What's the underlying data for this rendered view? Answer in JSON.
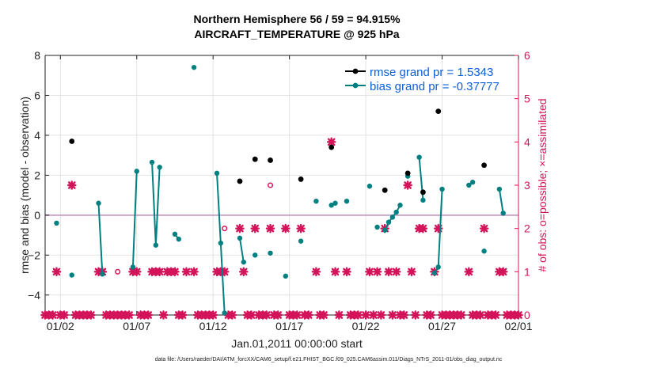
{
  "chart_data": {
    "type": "scatter",
    "title": "Northern Hemisphere 56 / 59 = 94.915%",
    "subtitle": "AIRCRAFT_TEMPERATURE @ 925 hPa",
    "xlabel": "Jan.01,2011 00:00:00 start",
    "ylabel": "rmse and bias (model - observation)",
    "y2label": "# of obs: o=possible; ×=assimilated",
    "footer": "data file: /Users/raeder/DAI/ATM_forcXX/CAM6_setup/f.e21.FHIST_BGC.f09_025.CAM6assim.011/Diags_NTrS_2011-01/obs_diag_output.nc",
    "xlim": [
      1,
      32
    ],
    "ylim": [
      -5,
      8
    ],
    "y2lim": [
      0,
      6
    ],
    "x_ticks": [
      2,
      7,
      12,
      17,
      22,
      27,
      32
    ],
    "x_tick_labels": [
      "01/02",
      "01/07",
      "01/12",
      "01/17",
      "01/22",
      "01/27",
      "02/01"
    ],
    "y_ticks": [
      -4,
      -2,
      0,
      2,
      4,
      6,
      8
    ],
    "y2_ticks": [
      0,
      1,
      2,
      3,
      4,
      5,
      6
    ],
    "grid": true,
    "zero_line": 0,
    "legend": {
      "location": "top-right",
      "entries": [
        "rmse grand pr = 1.5343",
        "bias grand pr = -0.37777"
      ]
    },
    "colors": {
      "rmse": "#000000",
      "bias": "#008080",
      "obs": "#d4145a",
      "legend_text": "#0b5fd9",
      "zero_line": "#c8a8c4"
    },
    "rmse_points": [
      [
        2.75,
        3.7
      ],
      [
        13.75,
        1.7
      ],
      [
        14.75,
        2.8
      ],
      [
        15.75,
        2.75
      ],
      [
        17.75,
        1.8
      ],
      [
        19.75,
        3.4
      ],
      [
        23.25,
        1.25
      ],
      [
        24.75,
        2.1
      ],
      [
        25.75,
        1.15
      ],
      [
        26.75,
        5.2
      ],
      [
        29.75,
        2.5
      ]
    ],
    "bias_segments": [
      [
        [
          1.75,
          -0.4
        ]
      ],
      [
        [
          2.75,
          -3.0
        ]
      ],
      [
        [
          4.5,
          0.6
        ],
        [
          4.75,
          -2.95
        ]
      ],
      [
        [
          6.75,
          -2.6
        ],
        [
          7.0,
          2.2
        ]
      ],
      [
        [
          8.0,
          2.65
        ],
        [
          8.25,
          -1.5
        ],
        [
          8.5,
          2.4
        ]
      ],
      [
        [
          9.5,
          -0.95
        ],
        [
          9.75,
          -1.2
        ]
      ],
      [
        [
          10.75,
          7.4
        ]
      ],
      [
        [
          12.25,
          2.1
        ],
        [
          12.5,
          -1.4
        ],
        [
          12.75,
          -4.9
        ]
      ],
      [
        [
          13.75,
          -1.15
        ],
        [
          14.0,
          -2.35
        ]
      ],
      [
        [
          14.75,
          -2.0
        ]
      ],
      [
        [
          15.75,
          -1.9
        ]
      ],
      [
        [
          16.75,
          -3.05
        ]
      ],
      [
        [
          17.75,
          -1.3
        ]
      ],
      [
        [
          18.75,
          0.7
        ]
      ],
      [
        [
          19.75,
          0.5
        ],
        [
          20.0,
          0.6
        ]
      ],
      [
        [
          20.75,
          0.7
        ]
      ],
      [
        [
          22.25,
          1.45
        ]
      ],
      [
        [
          22.75,
          -0.6
        ]
      ],
      [
        [
          23.25,
          -0.75
        ],
        [
          23.5,
          -0.35
        ],
        [
          23.75,
          -0.1
        ],
        [
          24.0,
          0.15
        ],
        [
          24.25,
          0.5
        ]
      ],
      [
        [
          24.75,
          1.95
        ]
      ],
      [
        [
          25.5,
          2.9
        ],
        [
          25.75,
          0.75
        ]
      ],
      [
        [
          26.5,
          -2.9
        ],
        [
          26.75,
          -2.6
        ],
        [
          27.0,
          1.3
        ]
      ],
      [
        [
          28.75,
          1.5
        ],
        [
          29.0,
          1.65
        ]
      ],
      [
        [
          29.75,
          -1.8
        ]
      ],
      [
        [
          30.75,
          1.3
        ],
        [
          31.0,
          0.1
        ]
      ]
    ],
    "obs_possible_points": [
      [
        5.75,
        1
      ],
      [
        12.75,
        2
      ],
      [
        15.75,
        3
      ]
    ],
    "obs_assimilated_points": [
      [
        1.0,
        0
      ],
      [
        1.25,
        0
      ],
      [
        1.5,
        0
      ],
      [
        1.75,
        1
      ],
      [
        2.0,
        0
      ],
      [
        2.25,
        0
      ],
      [
        2.75,
        3
      ],
      [
        3.0,
        0
      ],
      [
        3.25,
        0
      ],
      [
        3.5,
        0
      ],
      [
        3.75,
        0
      ],
      [
        4.0,
        0
      ],
      [
        4.5,
        1
      ],
      [
        4.75,
        1
      ],
      [
        5.0,
        0
      ],
      [
        5.25,
        0
      ],
      [
        5.5,
        0
      ],
      [
        5.75,
        0
      ],
      [
        6.0,
        0
      ],
      [
        6.25,
        0
      ],
      [
        6.5,
        0
      ],
      [
        6.75,
        1
      ],
      [
        7.0,
        1
      ],
      [
        7.25,
        0
      ],
      [
        7.5,
        0
      ],
      [
        7.75,
        0
      ],
      [
        8.0,
        1
      ],
      [
        8.25,
        1
      ],
      [
        8.5,
        1
      ],
      [
        8.75,
        0
      ],
      [
        9.0,
        1
      ],
      [
        9.25,
        1
      ],
      [
        9.5,
        1
      ],
      [
        9.75,
        0
      ],
      [
        10.0,
        0
      ],
      [
        10.25,
        1
      ],
      [
        10.75,
        1
      ],
      [
        11.0,
        0
      ],
      [
        11.25,
        0
      ],
      [
        11.5,
        0
      ],
      [
        11.75,
        0
      ],
      [
        12.0,
        0
      ],
      [
        12.25,
        1
      ],
      [
        12.5,
        1
      ],
      [
        12.75,
        1
      ],
      [
        13.0,
        0
      ],
      [
        13.25,
        0
      ],
      [
        13.75,
        2
      ],
      [
        14.0,
        1
      ],
      [
        14.25,
        0
      ],
      [
        14.5,
        0
      ],
      [
        14.75,
        2
      ],
      [
        15.0,
        0
      ],
      [
        15.25,
        0
      ],
      [
        15.5,
        0
      ],
      [
        15.75,
        2
      ],
      [
        16.0,
        0
      ],
      [
        16.25,
        0
      ],
      [
        16.75,
        2
      ],
      [
        17.0,
        0
      ],
      [
        17.25,
        0
      ],
      [
        17.5,
        0
      ],
      [
        17.75,
        2
      ],
      [
        18.0,
        0
      ],
      [
        18.25,
        0
      ],
      [
        18.75,
        1
      ],
      [
        19.0,
        0
      ],
      [
        19.25,
        0
      ],
      [
        19.75,
        4
      ],
      [
        20.0,
        1
      ],
      [
        20.25,
        0
      ],
      [
        20.75,
        1
      ],
      [
        21.0,
        0
      ],
      [
        21.25,
        0
      ],
      [
        21.5,
        0
      ],
      [
        22.0,
        0
      ],
      [
        22.25,
        1
      ],
      [
        22.5,
        0
      ],
      [
        22.75,
        1
      ],
      [
        23.0,
        0
      ],
      [
        23.25,
        2
      ],
      [
        23.5,
        1
      ],
      [
        23.75,
        0
      ],
      [
        24.0,
        1
      ],
      [
        24.25,
        0
      ],
      [
        24.5,
        0
      ],
      [
        24.75,
        3
      ],
      [
        25.0,
        1
      ],
      [
        25.25,
        0
      ],
      [
        25.5,
        2
      ],
      [
        25.75,
        2
      ],
      [
        26.0,
        0
      ],
      [
        26.25,
        0
      ],
      [
        26.5,
        1
      ],
      [
        26.75,
        2
      ],
      [
        27.0,
        0
      ],
      [
        27.25,
        0
      ],
      [
        27.5,
        0
      ],
      [
        27.75,
        0
      ],
      [
        28.0,
        0
      ],
      [
        28.25,
        0
      ],
      [
        28.75,
        1
      ],
      [
        29.0,
        0
      ],
      [
        29.25,
        0
      ],
      [
        29.5,
        0
      ],
      [
        29.75,
        2
      ],
      [
        30.0,
        0
      ],
      [
        30.25,
        0
      ],
      [
        30.5,
        0
      ],
      [
        30.75,
        1
      ],
      [
        31.0,
        1
      ],
      [
        31.25,
        0
      ],
      [
        31.5,
        0
      ],
      [
        31.75,
        0
      ],
      [
        32.0,
        0
      ]
    ]
  }
}
